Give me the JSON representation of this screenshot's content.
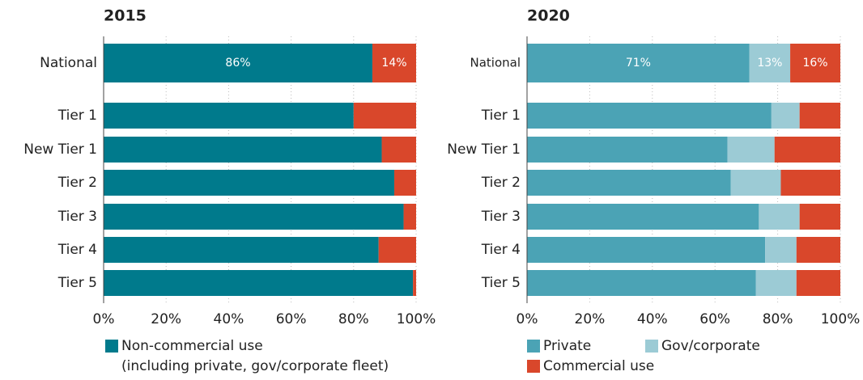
{
  "chart_data": [
    {
      "type": "bar",
      "orientation": "horizontal",
      "stacked": true,
      "title": "2015",
      "categories": [
        "National",
        "Tier 1",
        "New Tier 1",
        "Tier 2",
        "Tier 3",
        "Tier 4",
        "Tier 5"
      ],
      "series": [
        {
          "name": "Non-commercial use",
          "legend_note": "(including private, gov/corporate fleet)",
          "color": "#007a8c",
          "values": [
            86,
            80,
            89,
            93,
            96,
            88,
            99
          ],
          "value_labels": [
            "86%",
            null,
            null,
            null,
            null,
            null,
            null
          ]
        },
        {
          "name": "Commercial use",
          "color": "#d9472b",
          "show_in_legend": false,
          "values": [
            14,
            20,
            11,
            7,
            4,
            12,
            1
          ],
          "value_labels": [
            "14%",
            null,
            null,
            null,
            null,
            null,
            null
          ]
        }
      ],
      "xlim": [
        0,
        100
      ],
      "xticks": [
        {
          "value": 0,
          "label": "0%"
        },
        {
          "value": 20,
          "label": "20%"
        },
        {
          "value": 40,
          "label": "40%"
        },
        {
          "value": 60,
          "label": "60%"
        },
        {
          "value": 80,
          "label": "80%"
        },
        {
          "value": 100,
          "label": "100%"
        }
      ],
      "grid": true
    },
    {
      "type": "bar",
      "orientation": "horizontal",
      "stacked": true,
      "title": "2020",
      "categories": [
        "National",
        "Tier 1",
        "New Tier 1",
        "Tier 2",
        "Tier 3",
        "Tier 4",
        "Tier 5"
      ],
      "series": [
        {
          "name": "Private",
          "color": "#4ba3b5",
          "values": [
            71,
            78,
            64,
            65,
            74,
            76,
            73
          ],
          "value_labels": [
            "71%",
            null,
            null,
            null,
            null,
            null,
            null
          ]
        },
        {
          "name": "Gov/corporate",
          "color": "#9ccbd5",
          "values": [
            13,
            9,
            15,
            16,
            13,
            10,
            13
          ],
          "value_labels": [
            "13%",
            null,
            null,
            null,
            null,
            null,
            null
          ]
        },
        {
          "name": "Commercial use",
          "color": "#d9472b",
          "values": [
            16,
            13,
            21,
            19,
            13,
            14,
            14
          ],
          "value_labels": [
            "16%",
            null,
            null,
            null,
            null,
            null,
            null
          ]
        }
      ],
      "xlim": [
        0,
        100
      ],
      "xticks": [
        {
          "value": 0,
          "label": "0%"
        },
        {
          "value": 20,
          "label": "20%"
        },
        {
          "value": 40,
          "label": "40%"
        },
        {
          "value": 60,
          "label": "60%"
        },
        {
          "value": 80,
          "label": "80%"
        },
        {
          "value": 100,
          "label": "100%"
        }
      ],
      "grid": true
    }
  ]
}
